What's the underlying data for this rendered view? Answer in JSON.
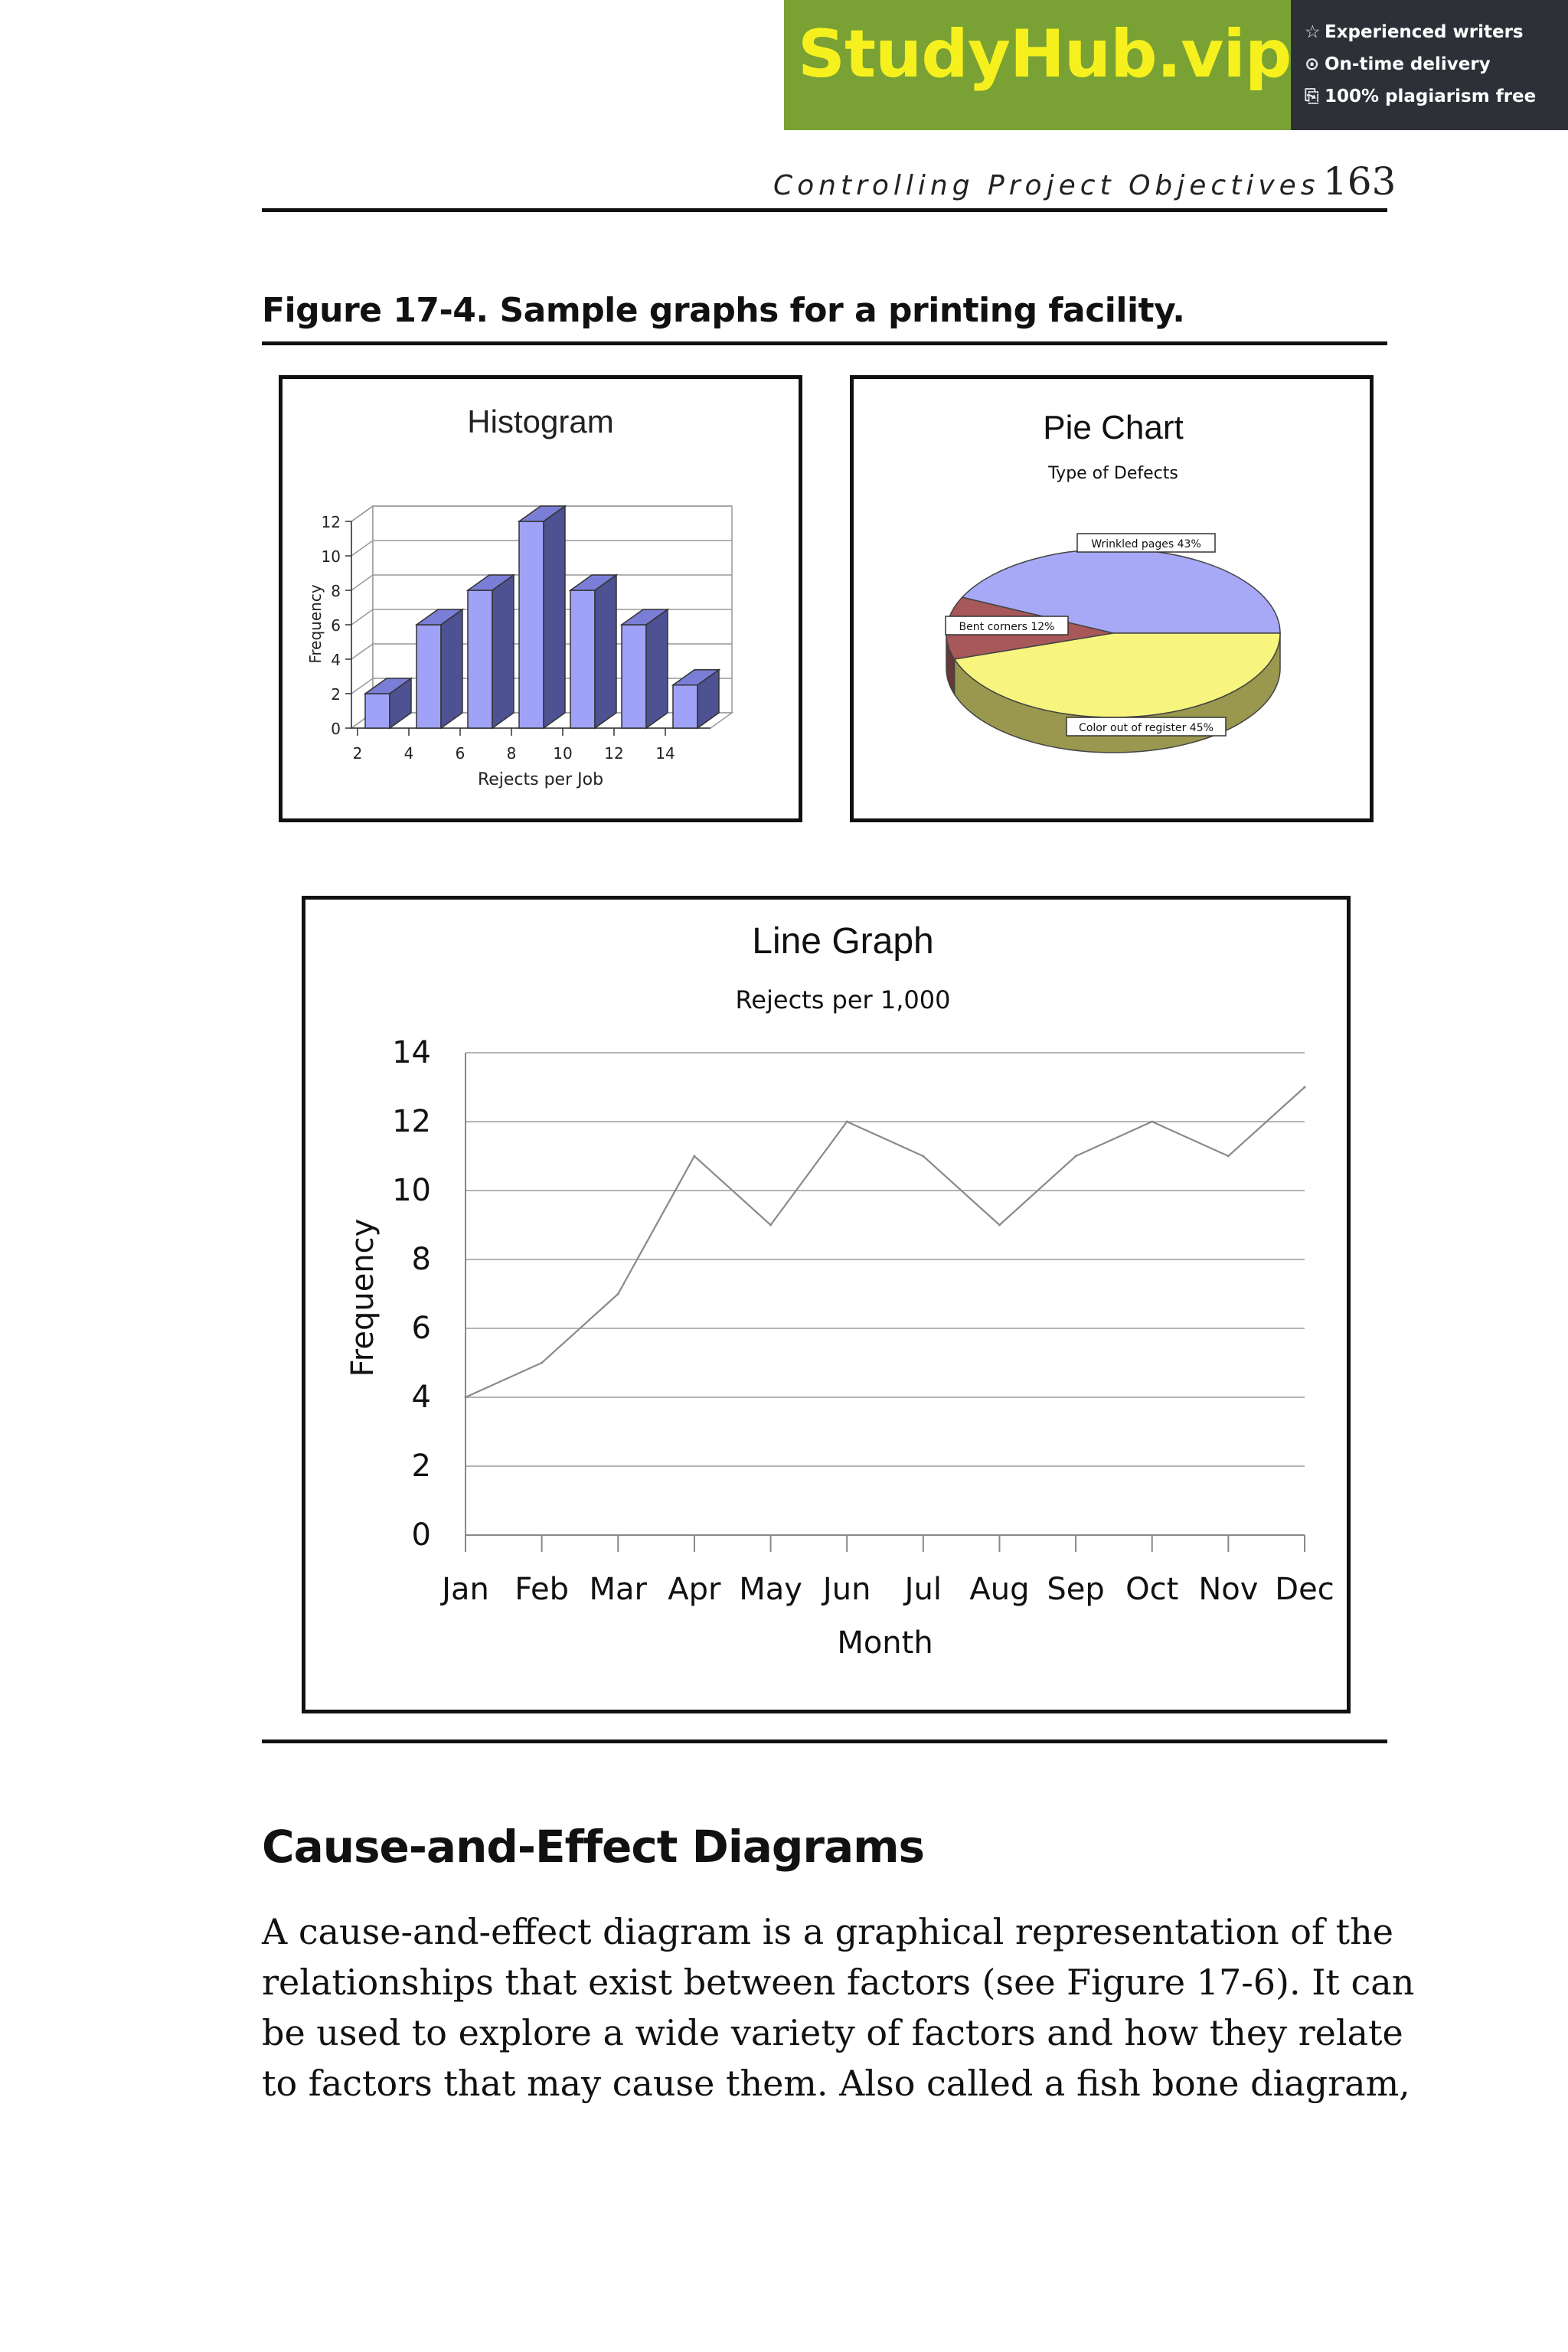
{
  "banner": {
    "brand": "StudyHub.vip",
    "perks": [
      {
        "icon": "star-icon",
        "glyph": "☆",
        "text": "Experienced writers"
      },
      {
        "icon": "clock-icon",
        "glyph": "⊙",
        "text": "On-time delivery"
      },
      {
        "icon": "document-copy-icon",
        "glyph": "⎘",
        "text": "100% plagiarism free"
      }
    ],
    "colors": {
      "left": "#79a133",
      "right": "#2d3137",
      "brand_text": "#f6f11e"
    }
  },
  "header": {
    "running_title": "Controlling Project Objectives",
    "page_number": "163"
  },
  "figure": {
    "caption": "Figure 17-4. Sample graphs for a printing facility."
  },
  "chart_data": [
    {
      "type": "bar",
      "title": "Histogram",
      "xlabel": "Rejects per Job",
      "ylabel": "Frequency",
      "categories": [
        "2",
        "4",
        "6",
        "8",
        "10",
        "12",
        "14"
      ],
      "values": [
        2,
        6,
        8,
        12,
        8,
        6,
        2.5
      ],
      "ylim": [
        0,
        12
      ],
      "yticks": [
        "0",
        "2",
        "4",
        "6",
        "8",
        "10",
        "12"
      ],
      "grid": true,
      "style": "3d",
      "bar_color": "#9fa2f7"
    },
    {
      "type": "pie",
      "title": "Pie Chart",
      "subtitle": "Type of Defects",
      "style": "3d",
      "slices": [
        {
          "label": "Wrinkled pages 43%",
          "value": 43,
          "color": "#a7a8f6"
        },
        {
          "label": "Bent corners 12%",
          "value": 12,
          "color": "#a9585a"
        },
        {
          "label": "Color out of register 45%",
          "value": 45,
          "color": "#f7f57e"
        }
      ]
    },
    {
      "type": "line",
      "title": "Line Graph",
      "subtitle": "Rejects per 1,000",
      "xlabel": "Month",
      "ylabel": "Frequency",
      "categories": [
        "Jan",
        "Feb",
        "Mar",
        "Apr",
        "May",
        "Jun",
        "Jul",
        "Aug",
        "Sep",
        "Oct",
        "Nov",
        "Dec"
      ],
      "values": [
        4,
        5,
        7,
        11,
        9,
        12,
        11,
        9,
        11,
        12,
        11,
        13
      ],
      "ylim": [
        0,
        14
      ],
      "yticks": [
        "0",
        "2",
        "4",
        "6",
        "8",
        "10",
        "12",
        "14"
      ],
      "grid": true
    }
  ],
  "section": {
    "heading": "Cause-and-Effect Diagrams",
    "lines": [
      "A cause-and-effect diagram is a graphical representation of the",
      "relationships that exist between factors (see Figure 17-6). It can",
      "be used to explore a wide variety of factors and how they relate",
      "to factors that may cause them. Also called a fish bone diagram,"
    ]
  }
}
